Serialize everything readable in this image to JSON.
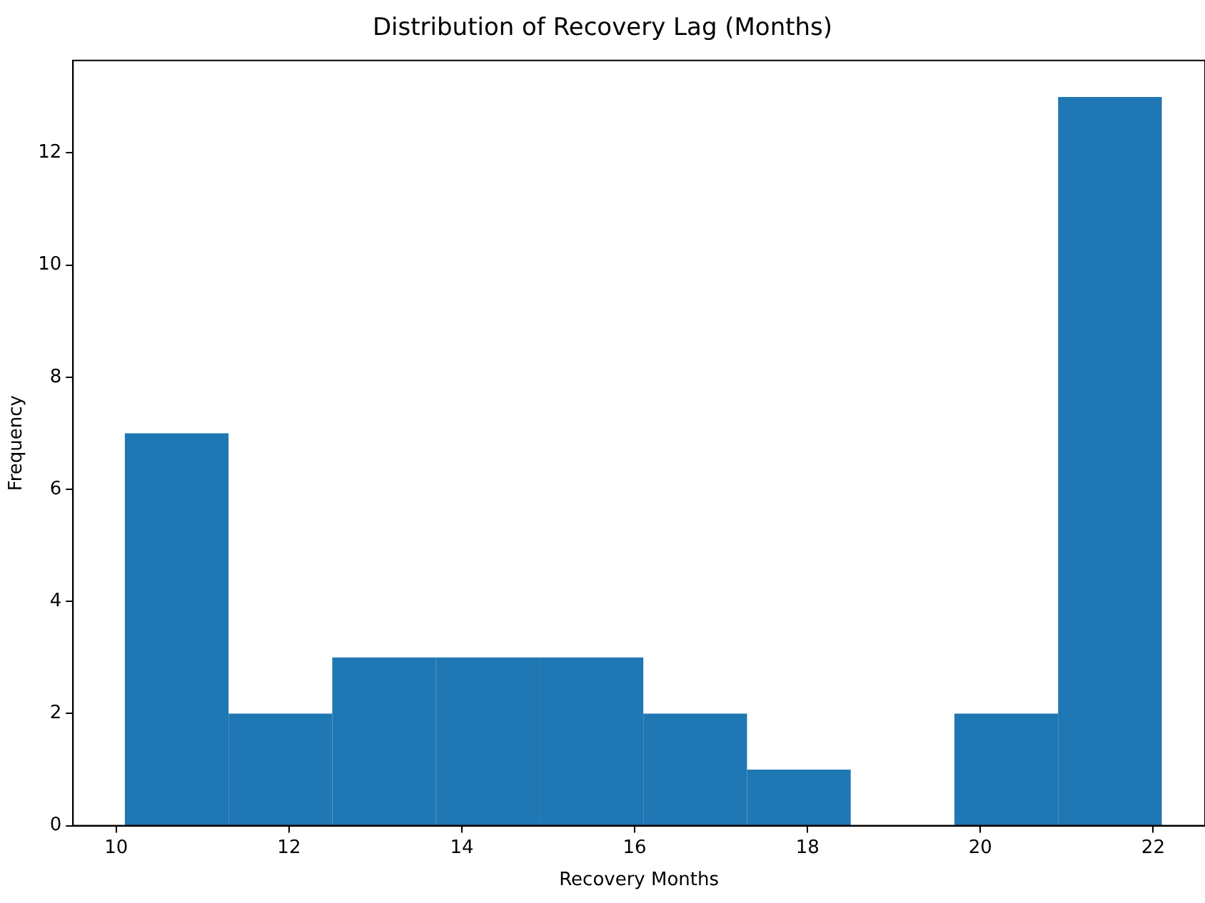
{
  "chart_data": {
    "type": "histogram",
    "title": "Distribution of Recovery Lag (Months)",
    "xlabel": "Recovery Months",
    "ylabel": "Frequency",
    "bins": [
      10.1,
      11.3,
      12.5,
      13.7,
      14.9,
      16.1,
      17.3,
      18.5,
      19.7,
      20.9,
      22.1
    ],
    "values": [
      7,
      2,
      3,
      3,
      3,
      2,
      1,
      0,
      2,
      13
    ],
    "color": "#1f77b4",
    "xlim": [
      9.5,
      22.6
    ],
    "xticks": [
      10,
      12,
      14,
      16,
      18,
      20,
      22
    ],
    "ylim": [
      0,
      13.65
    ],
    "yticks": [
      0,
      2,
      4,
      6,
      8,
      10,
      12
    ],
    "grid": false,
    "legend": false
  }
}
